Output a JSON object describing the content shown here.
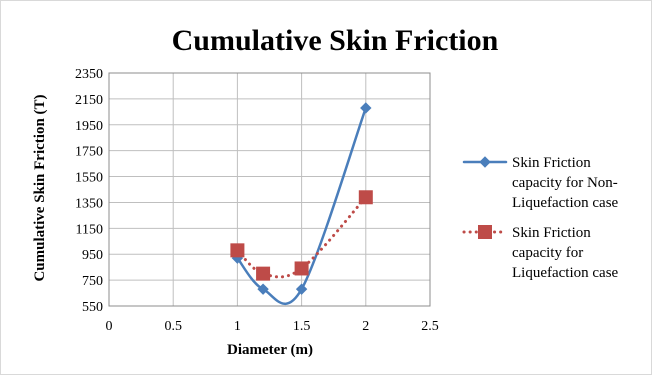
{
  "chart_data": {
    "type": "line",
    "title": "Cumulative Skin Friction",
    "xlabel": "Diameter (m)",
    "ylabel": "Cumulative Skin Friction (T)",
    "xlim": [
      0,
      2.5
    ],
    "ylim": [
      550,
      2350
    ],
    "xticks": [
      "0",
      "0.5",
      "1",
      "1.5",
      "2",
      "2.5"
    ],
    "yticks": [
      "550",
      "750",
      "950",
      "1150",
      "1350",
      "1550",
      "1750",
      "1950",
      "2150",
      "2350"
    ],
    "grid": true,
    "legend_position": "right",
    "series": [
      {
        "name_lines": [
          "Skin Friction",
          "capacity for Non-",
          "Liquefaction case"
        ],
        "color": "#4a7ebb",
        "marker": "diamond",
        "line_style": "solid",
        "smooth": true,
        "x": [
          1,
          1.2,
          1.5,
          2
        ],
        "y": [
          920,
          680,
          680,
          2080
        ]
      },
      {
        "name_lines": [
          "Skin Friction",
          "capacity for",
          "Liquefaction case"
        ],
        "color": "#be4b48",
        "marker": "square",
        "line_style": "dotted",
        "smooth": true,
        "x": [
          1,
          1.2,
          1.5,
          2
        ],
        "y": [
          980,
          800,
          840,
          1390
        ]
      }
    ]
  }
}
